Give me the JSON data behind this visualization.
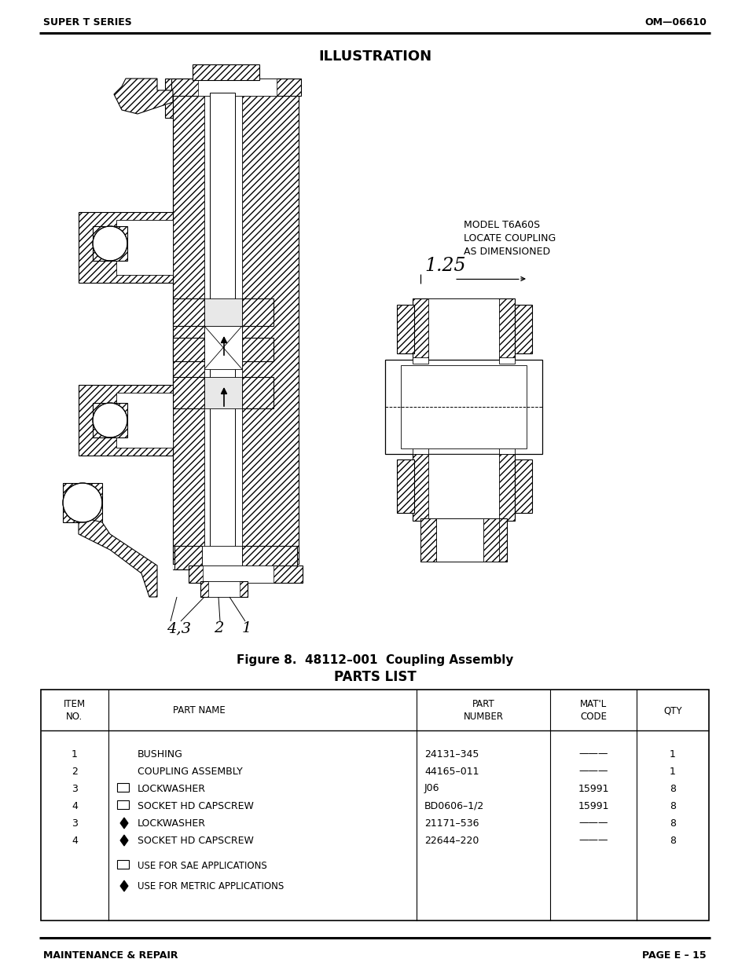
{
  "header_left": "SUPER T SERIES",
  "header_right": "OM—06610",
  "illustration_title": "ILLUSTRATION",
  "figure_caption": "Figure 8.  48112–001  Coupling Assembly",
  "parts_list_title": "PARTS LIST",
  "footer_left": "MAINTENANCE & REPAIR",
  "footer_right": "PAGE E – 15",
  "table_rows": [
    [
      "1",
      "",
      "BUSHING",
      "24131–345",
      "———",
      "1"
    ],
    [
      "2",
      "",
      "COUPLING ASSEMBLY",
      "44165–011",
      "———",
      "1"
    ],
    [
      "3",
      "sae",
      "LOCKWASHER",
      "J06",
      "15991",
      "8"
    ],
    [
      "4",
      "sae",
      "SOCKET HD CAPSCREW",
      "BD0606–1/2",
      "15991",
      "8"
    ],
    [
      "3",
      "metric",
      "LOCKWASHER",
      "21171–536",
      "———",
      "8"
    ],
    [
      "4",
      "metric",
      "SOCKET HD CAPSCREW",
      "22644–220",
      "———",
      "8"
    ]
  ],
  "footnote_sae": "USE FOR SAE APPLICATIONS",
  "footnote_metric": "USE FOR METRIC APPLICATIONS",
  "bg_color": "#ffffff",
  "text_color": "#000000",
  "model_note": "MODEL T6A60S\nLOCATE COUPLING\nAS DIMENSIONED",
  "dimension_label": "1.25"
}
